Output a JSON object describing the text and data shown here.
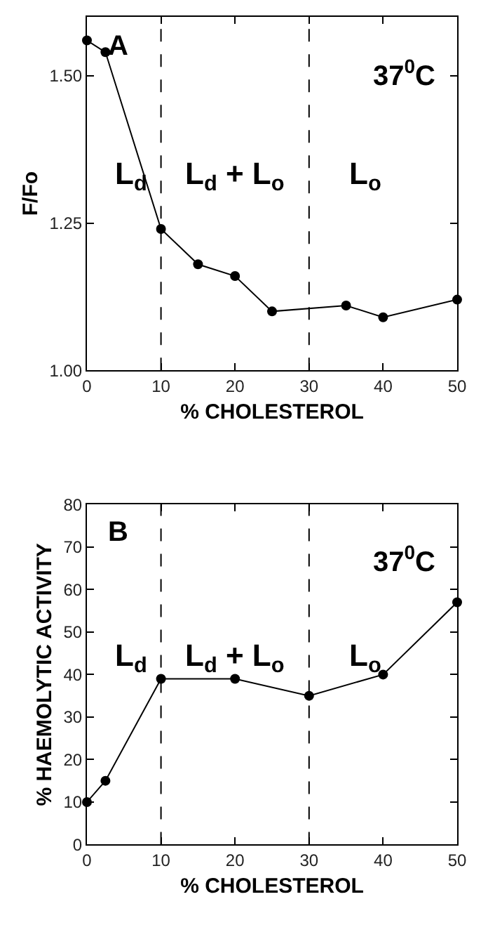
{
  "chart_data": [
    {
      "type": "line",
      "xlabel": "% CHOLESTEROL",
      "ylabel": "F/Fo",
      "x": [
        0,
        2.5,
        10,
        15,
        20,
        25,
        35,
        40,
        50
      ],
      "series": [
        {
          "color": "#000000",
          "values": [
            1.56,
            1.54,
            1.24,
            1.18,
            1.16,
            1.1,
            1.11,
            1.09,
            1.12
          ]
        }
      ],
      "xlim": [
        0,
        50
      ],
      "xticks": [
        0,
        10,
        20,
        30,
        40,
        50
      ],
      "ylim": [
        1.0,
        1.6
      ],
      "yticks": [
        {
          "value": 1.0,
          "label": "1.00"
        },
        {
          "value": 1.25,
          "label": "1.25"
        },
        {
          "value": 1.5,
          "label": "1.50"
        }
      ],
      "ref_lines": [
        {
          "axis": "x",
          "value": 10,
          "line_style": "dashed",
          "color": "#000000"
        },
        {
          "axis": "x",
          "value": 30,
          "line_style": "dashed",
          "color": "#000000"
        }
      ],
      "annotations": [
        "A",
        "37$^{0}$C",
        "L$_{d}$",
        "L$_{d}$ + L$_{o}$",
        "L$_{o}$"
      ],
      "marker": "circle",
      "line_style": "solid"
    },
    {
      "type": "line",
      "xlabel": "% CHOLESTEROL",
      "ylabel": "% HAEMOLYTIC ACTIVITY",
      "x": [
        0,
        2.5,
        10,
        20,
        30,
        40,
        50
      ],
      "series": [
        {
          "color": "#000000",
          "values": [
            10,
            15,
            39,
            39,
            35,
            40,
            57
          ]
        }
      ],
      "xlim": [
        0,
        50
      ],
      "xticks": [
        0,
        10,
        20,
        30,
        40,
        50
      ],
      "ylim": [
        0,
        80
      ],
      "yticks": [
        0,
        10,
        20,
        30,
        40,
        50,
        60,
        70,
        80
      ],
      "ref_lines": [
        {
          "axis": "x",
          "value": 10,
          "line_style": "dashed",
          "color": "#000000"
        },
        {
          "axis": "x",
          "value": 30,
          "line_style": "dashed",
          "color": "#000000"
        }
      ],
      "annotations": [
        "B",
        "37$^{0}$C",
        "L$_{d}$",
        "L$_{d}$ + L$_{o}$",
        "L$_{o}$"
      ],
      "marker": "circle",
      "line_style": "solid"
    }
  ]
}
